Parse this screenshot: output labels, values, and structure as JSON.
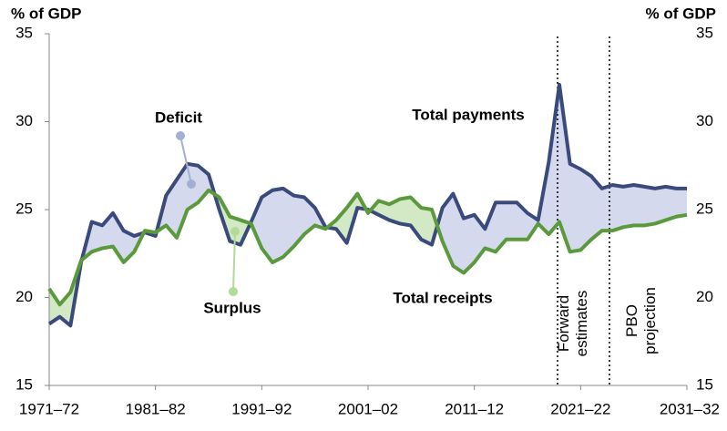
{
  "chart_data": {
    "type": "line",
    "y_label": "% of GDP",
    "y2_label": "% of GDP",
    "categories": [
      "1971–72",
      null,
      null,
      null,
      null,
      null,
      null,
      null,
      null,
      null,
      "1981–82",
      null,
      null,
      null,
      null,
      null,
      null,
      null,
      null,
      null,
      "1991–92",
      null,
      null,
      null,
      null,
      null,
      null,
      null,
      null,
      null,
      "2001–02",
      null,
      null,
      null,
      null,
      null,
      null,
      null,
      null,
      null,
      "2011–12",
      null,
      null,
      null,
      null,
      null,
      null,
      null,
      null,
      null,
      "2021–22",
      null,
      null,
      null,
      null,
      null,
      null,
      null,
      null,
      null,
      "2031–32"
    ],
    "series": [
      {
        "name": "Total payments",
        "color": "#3b4a7c",
        "values": [
          18.5,
          18.9,
          18.4,
          22.0,
          24.3,
          24.1,
          24.8,
          23.8,
          23.5,
          23.7,
          23.5,
          25.8,
          26.7,
          27.6,
          27.5,
          27.0,
          25.0,
          23.2,
          23.0,
          24.3,
          25.7,
          26.1,
          26.2,
          25.8,
          25.7,
          25.1,
          24.0,
          23.9,
          23.1,
          25.1,
          25.0,
          24.7,
          24.4,
          24.2,
          24.1,
          23.3,
          23.0,
          25.1,
          25.9,
          24.5,
          24.7,
          23.9,
          25.4,
          25.4,
          25.4,
          24.8,
          24.4,
          27.7,
          32.1,
          27.6,
          27.3,
          26.9,
          26.2,
          26.4,
          26.3,
          26.4,
          26.3,
          26.2,
          26.3,
          26.2,
          26.2
        ]
      },
      {
        "name": "Total receipts",
        "color": "#5b9a3c",
        "values": [
          20.5,
          19.6,
          20.3,
          22.1,
          22.6,
          22.8,
          22.9,
          22.0,
          22.6,
          23.8,
          23.7,
          24.1,
          23.4,
          25.0,
          25.4,
          26.1,
          25.7,
          24.6,
          24.4,
          24.2,
          22.8,
          22.0,
          22.3,
          22.9,
          23.6,
          24.1,
          23.9,
          24.4,
          25.1,
          25.9,
          24.8,
          25.5,
          25.3,
          25.6,
          25.7,
          25.1,
          25.0,
          23.2,
          21.8,
          21.4,
          22.0,
          22.8,
          22.6,
          23.3,
          23.3,
          23.3,
          24.2,
          23.6,
          24.3,
          22.6,
          22.7,
          23.3,
          23.8,
          23.8,
          24.0,
          24.1,
          24.1,
          24.2,
          24.4,
          24.6,
          24.7
        ]
      }
    ],
    "deficit_label": "Deficit",
    "deficit_color": "#d5d9ee",
    "deficit_text_color": "#a3afd2",
    "surplus_label": "Surplus",
    "surplus_color": "#d3e8c4",
    "surplus_text_color": "#b3da98",
    "annotations": [
      "Forward estimates",
      "PBO projection"
    ],
    "ylim": [
      15,
      35
    ],
    "yticks": [
      15,
      20,
      25,
      30,
      35
    ],
    "y2lim": [
      15,
      35
    ],
    "y2ticks": [
      15,
      20,
      25,
      30,
      35
    ]
  }
}
